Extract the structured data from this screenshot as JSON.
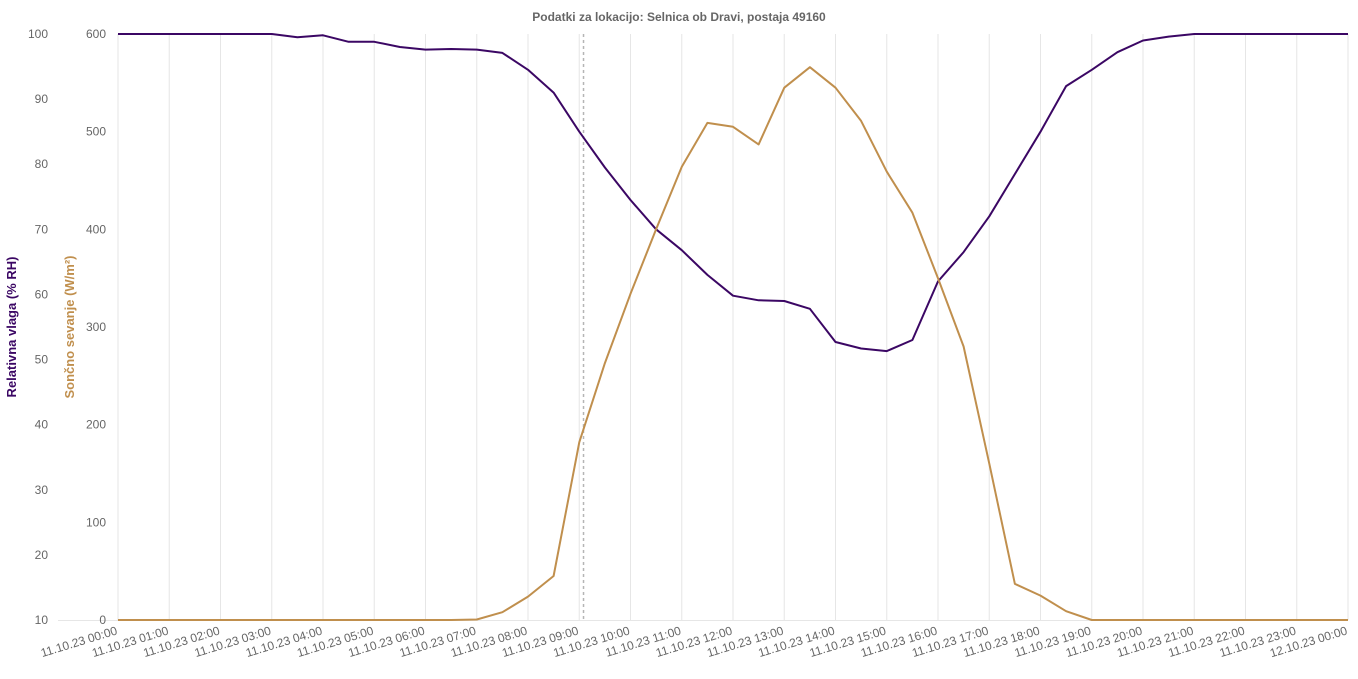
{
  "chart_data": {
    "type": "line",
    "title": "Podatki za lokacijo: Selnica ob Dravi, postaja 49160",
    "x": [
      "11.10.23 00:00",
      "11.10.23 00:30",
      "11.10.23 01:00",
      "11.10.23 01:30",
      "11.10.23 02:00",
      "11.10.23 02:30",
      "11.10.23 03:00",
      "11.10.23 03:30",
      "11.10.23 04:00",
      "11.10.23 04:30",
      "11.10.23 05:00",
      "11.10.23 05:30",
      "11.10.23 06:00",
      "11.10.23 06:30",
      "11.10.23 07:00",
      "11.10.23 07:30",
      "11.10.23 08:00",
      "11.10.23 08:30",
      "11.10.23 09:00",
      "11.10.23 09:30",
      "11.10.23 10:00",
      "11.10.23 10:30",
      "11.10.23 11:00",
      "11.10.23 11:30",
      "11.10.23 12:00",
      "11.10.23 12:30",
      "11.10.23 13:00",
      "11.10.23 13:30",
      "11.10.23 14:00",
      "11.10.23 14:30",
      "11.10.23 15:00",
      "11.10.23 15:30",
      "11.10.23 16:00",
      "11.10.23 16:30",
      "11.10.23 17:00",
      "11.10.23 17:30",
      "11.10.23 18:00",
      "11.10.23 18:30",
      "11.10.23 19:00",
      "11.10.23 19:30",
      "11.10.23 20:00",
      "11.10.23 20:30",
      "11.10.23 21:00",
      "11.10.23 21:30",
      "11.10.23 22:00",
      "11.10.23 22:30",
      "11.10.23 23:00",
      "11.10.23 23:30",
      "12.10.23 00:00"
    ],
    "x_tick_labels": [
      "11.10.23 00:00",
      "11.10.23 01:00",
      "11.10.23 02:00",
      "11.10.23 03:00",
      "11.10.23 04:00",
      "11.10.23 05:00",
      "11.10.23 06:00",
      "11.10.23 07:00",
      "11.10.23 08:00",
      "11.10.23 09:00",
      "11.10.23 10:00",
      "11.10.23 11:00",
      "11.10.23 12:00",
      "11.10.23 13:00",
      "11.10.23 14:00",
      "11.10.23 15:00",
      "11.10.23 16:00",
      "11.10.23 17:00",
      "11.10.23 18:00",
      "11.10.23 19:00",
      "11.10.23 20:00",
      "11.10.23 21:00",
      "11.10.23 22:00",
      "11.10.23 23:00",
      "12.10.23 00:00"
    ],
    "series": [
      {
        "name": "Relativna vlaga (% RH)",
        "axis": "left",
        "color": "#3b0764",
        "values": [
          100,
          100,
          100,
          100,
          100,
          100,
          100,
          99.5,
          99.8,
          98.8,
          98.8,
          98.0,
          97.6,
          97.7,
          97.6,
          97.1,
          94.5,
          91.0,
          85.0,
          79.5,
          74.5,
          70.0,
          66.8,
          63.0,
          59.8,
          59.1,
          59.0,
          57.8,
          52.7,
          51.7,
          51.3,
          53.0,
          62.0,
          66.5,
          72.0,
          78.5,
          85.0,
          92.0,
          94.5,
          97.2,
          99.0,
          99.6,
          100,
          100,
          100,
          100,
          100,
          100,
          100
        ]
      },
      {
        "name": "Sončno sevanje (W/m²)",
        "axis": "right",
        "color": "#c08f4d",
        "values": [
          0,
          0,
          0,
          0,
          0,
          0,
          0,
          0,
          0,
          0,
          0,
          0,
          0,
          0,
          0.5,
          8,
          24,
          45,
          182,
          263,
          334,
          400,
          464,
          509,
          505,
          487,
          545,
          566,
          545,
          511,
          459,
          417,
          350,
          280,
          160,
          37,
          25,
          9,
          0,
          0,
          0,
          0,
          0,
          0,
          0,
          0,
          0,
          0,
          0
        ]
      }
    ],
    "ylabel": "Relativna vlaga (% RH)",
    "ylabel_right": "Sončno sevanje  (W/m²)",
    "ylim": [
      10,
      100
    ],
    "ylim_right": [
      0,
      600
    ],
    "y_ticks": [
      "100",
      "90",
      "80",
      "70",
      "60",
      "50",
      "40",
      "30",
      "20",
      "10"
    ],
    "y_ticks_right": [
      "600",
      "500",
      "400",
      "300",
      "200",
      "100",
      "0"
    ],
    "grid": "vertical",
    "crosshair_x": "11.10.23 09:05"
  }
}
